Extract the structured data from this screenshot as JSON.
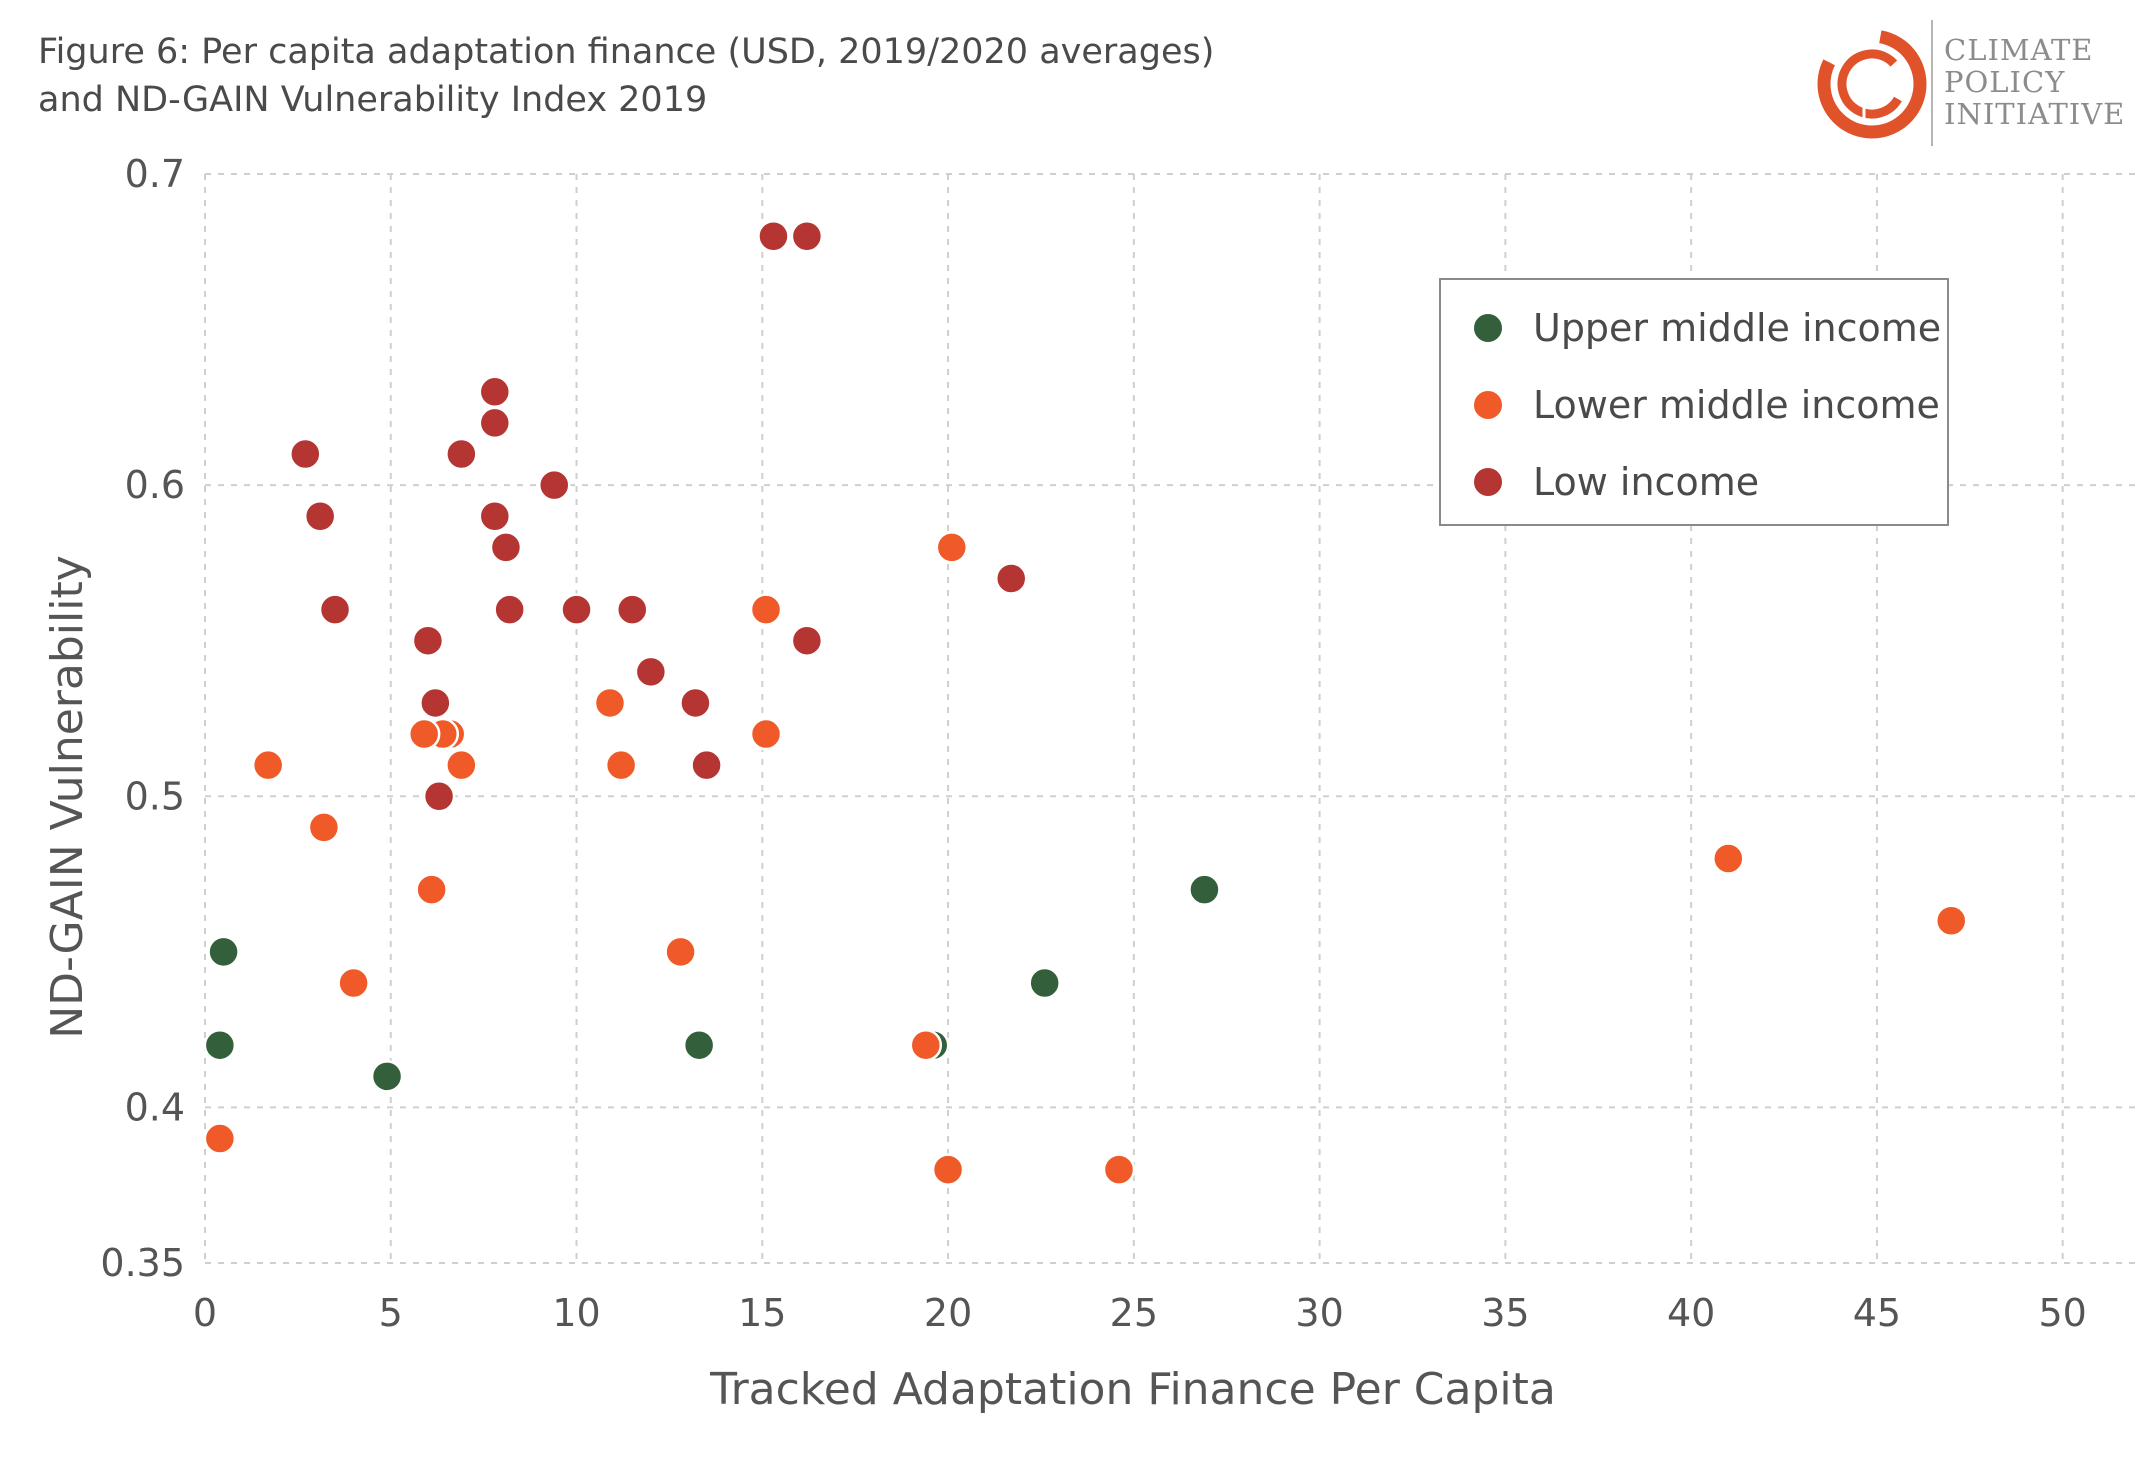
{
  "figure": {
    "title_line1": "Figure 6: Per capita adaptation finance (USD, 2019/2020 averages)",
    "title_line2": "and ND-GAIN Vulnerability Index 2019"
  },
  "logo": {
    "line1": "CLIMATE",
    "line2": "POLICY",
    "line3": "INITIATIVE",
    "ring_color": "#e0532a",
    "icon": "spiral-ring-logo"
  },
  "chart_data": {
    "type": "scatter",
    "xlabel": "Tracked Adaptation Finance Per Capita",
    "ylabel": "ND-GAIN Vulnerability",
    "xlim": [
      0,
      52
    ],
    "ylim": [
      0.35,
      0.7
    ],
    "xticks": [
      0,
      5,
      10,
      15,
      20,
      25,
      30,
      35,
      40,
      45,
      50
    ],
    "xtick_labels": [
      "0",
      "5",
      "10",
      "15",
      "20",
      "25",
      "30",
      "35",
      "40",
      "45",
      "50"
    ],
    "yticks": [
      0.35,
      0.4,
      0.5,
      0.6,
      0.7
    ],
    "ytick_labels": [
      "0.35",
      "0.4",
      "0.5",
      "0.6",
      "0.7"
    ],
    "grid": true,
    "legend_position": "top-right",
    "series": [
      {
        "name": "Upper middle income",
        "color": "#33603a",
        "points": [
          {
            "x": 0.5,
            "y": 0.45
          },
          {
            "x": 0.4,
            "y": 0.42
          },
          {
            "x": 4.9,
            "y": 0.41
          },
          {
            "x": 13.3,
            "y": 0.42
          },
          {
            "x": 19.6,
            "y": 0.42
          },
          {
            "x": 22.6,
            "y": 0.44
          },
          {
            "x": 26.9,
            "y": 0.47
          }
        ]
      },
      {
        "name": "Lower middle income",
        "color": "#f05a28",
        "points": [
          {
            "x": 1.7,
            "y": 0.51
          },
          {
            "x": 3.2,
            "y": 0.49
          },
          {
            "x": 4.0,
            "y": 0.44
          },
          {
            "x": 0.4,
            "y": 0.39
          },
          {
            "x": 6.1,
            "y": 0.47
          },
          {
            "x": 6.6,
            "y": 0.52
          },
          {
            "x": 6.4,
            "y": 0.52
          },
          {
            "x": 5.9,
            "y": 0.52
          },
          {
            "x": 6.9,
            "y": 0.51
          },
          {
            "x": 10.9,
            "y": 0.53
          },
          {
            "x": 11.2,
            "y": 0.51
          },
          {
            "x": 12.8,
            "y": 0.45
          },
          {
            "x": 15.1,
            "y": 0.56
          },
          {
            "x": 15.1,
            "y": 0.52
          },
          {
            "x": 20.1,
            "y": 0.58
          },
          {
            "x": 19.4,
            "y": 0.42
          },
          {
            "x": 20.0,
            "y": 0.38
          },
          {
            "x": 24.6,
            "y": 0.38
          },
          {
            "x": 41.0,
            "y": 0.48
          },
          {
            "x": 47.0,
            "y": 0.46
          }
        ]
      },
      {
        "name": "Low income",
        "color": "#b53532",
        "points": [
          {
            "x": 2.7,
            "y": 0.61
          },
          {
            "x": 3.1,
            "y": 0.59
          },
          {
            "x": 3.5,
            "y": 0.56
          },
          {
            "x": 6.0,
            "y": 0.55
          },
          {
            "x": 6.2,
            "y": 0.53
          },
          {
            "x": 6.3,
            "y": 0.5
          },
          {
            "x": 6.9,
            "y": 0.61
          },
          {
            "x": 7.8,
            "y": 0.63
          },
          {
            "x": 7.8,
            "y": 0.62
          },
          {
            "x": 7.8,
            "y": 0.59
          },
          {
            "x": 8.1,
            "y": 0.58
          },
          {
            "x": 8.2,
            "y": 0.56
          },
          {
            "x": 9.4,
            "y": 0.6
          },
          {
            "x": 10.0,
            "y": 0.56
          },
          {
            "x": 11.5,
            "y": 0.56
          },
          {
            "x": 12.0,
            "y": 0.54
          },
          {
            "x": 13.2,
            "y": 0.53
          },
          {
            "x": 13.5,
            "y": 0.51
          },
          {
            "x": 15.3,
            "y": 0.68
          },
          {
            "x": 16.2,
            "y": 0.68
          },
          {
            "x": 16.2,
            "y": 0.55
          },
          {
            "x": 21.7,
            "y": 0.57
          }
        ]
      }
    ]
  }
}
